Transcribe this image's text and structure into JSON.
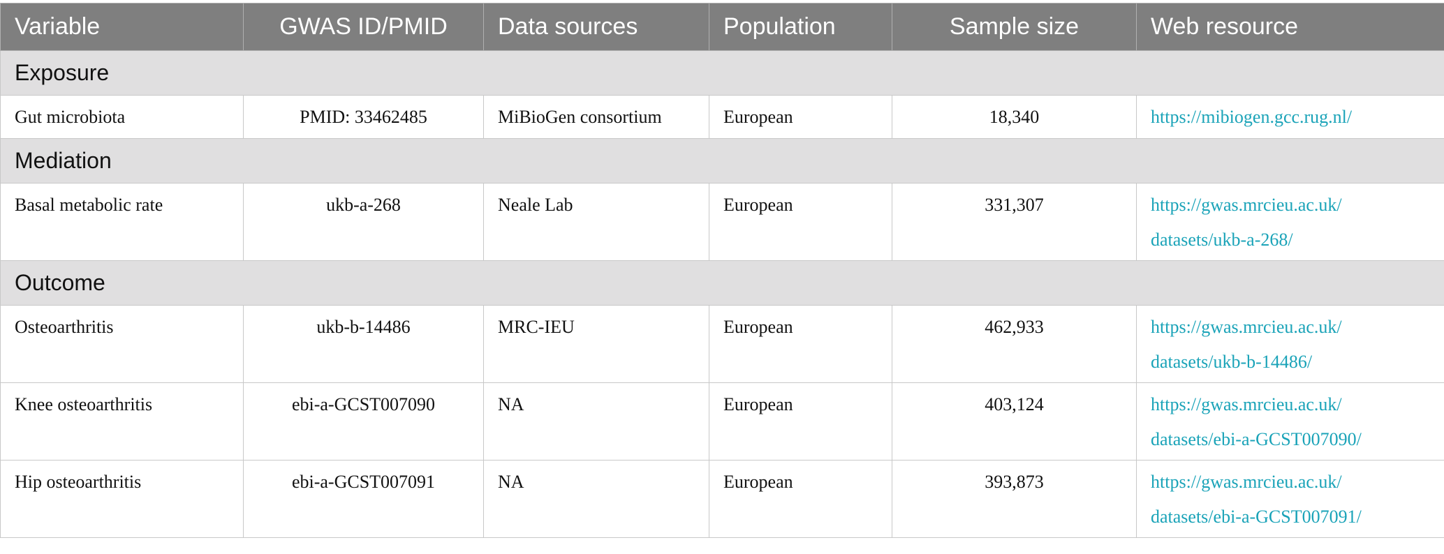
{
  "headers": [
    "Variable",
    "GWAS ID/PMID",
    "Data sources",
    "Population",
    "Sample size",
    "Web resource"
  ],
  "sections": [
    {
      "title": "Exposure",
      "rows": [
        {
          "variable": "Gut microbiota",
          "id": "PMID: 33462485",
          "source": "MiBioGen consortium",
          "population": "European",
          "sample_size": "18,340",
          "web1": "https://mibiogen.gcc.rug.nl/",
          "web2": ""
        }
      ]
    },
    {
      "title": "Mediation",
      "rows": [
        {
          "variable": "Basal metabolic rate",
          "id": "ukb-a-268",
          "source": "Neale Lab",
          "population": "European",
          "sample_size": "331,307",
          "web1": "https://gwas.mrcieu.ac.uk/",
          "web2": "datasets/ukb-a-268/"
        }
      ]
    },
    {
      "title": "Outcome",
      "rows": [
        {
          "variable": "Osteoarthritis",
          "id": "ukb-b-14486",
          "source": "MRC-IEU",
          "population": "European",
          "sample_size": "462,933",
          "web1": "https://gwas.mrcieu.ac.uk/",
          "web2": "datasets/ukb-b-14486/"
        },
        {
          "variable": "Knee osteoarthritis",
          "id": "ebi-a-GCST007090",
          "source": "NA",
          "population": "European",
          "sample_size": "403,124",
          "web1": "https://gwas.mrcieu.ac.uk/",
          "web2": "datasets/ebi-a-GCST007090/"
        },
        {
          "variable": "Hip osteoarthritis",
          "id": "ebi-a-GCST007091",
          "source": "NA",
          "population": "European",
          "sample_size": "393,873",
          "web1": "https://gwas.mrcieu.ac.uk/",
          "web2": "datasets/ebi-a-GCST007091/"
        }
      ]
    }
  ]
}
